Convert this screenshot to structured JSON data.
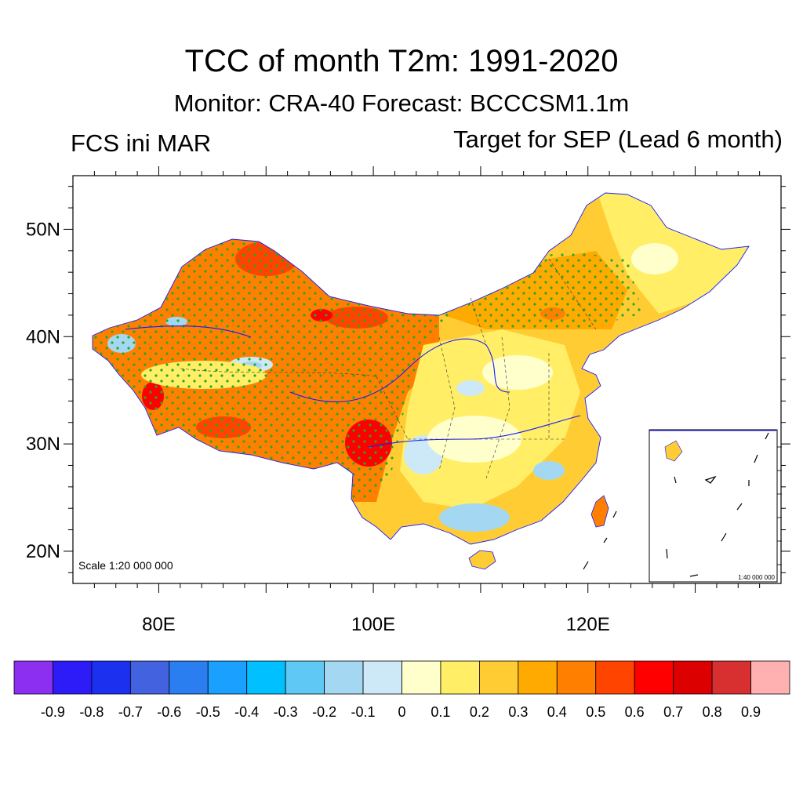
{
  "header": {
    "title": "TCC of month T2m: 1991-2020",
    "subtitle": "Monitor: CRA-40   Forecast: BCCCSM1.1m",
    "left_subtitle": "FCS ini MAR",
    "right_subtitle": "Target for SEP (Lead 6 month)"
  },
  "map": {
    "scale_label": "Scale 1:20 000 000",
    "inset_scale_label": "1:40 000 000",
    "lat_ticks": [
      "50N",
      "40N",
      "30N",
      "20N"
    ],
    "lat_values": [
      50,
      40,
      30,
      20
    ],
    "lon_ticks": [
      "80E",
      "100E",
      "120E"
    ],
    "lon_values": [
      80,
      100,
      120
    ],
    "lon_range": [
      72,
      138
    ],
    "lat_range": [
      17,
      55
    ],
    "colors": {
      "ocean": "#ffffff",
      "river": "#1a1aff",
      "border": "#000000",
      "stipple": "#22aa22"
    }
  },
  "colorbar": {
    "labels": [
      "-0.9",
      "-0.8",
      "-0.7",
      "-0.6",
      "-0.5",
      "-0.4",
      "-0.3",
      "-0.2",
      "-0.1",
      "0",
      "0.1",
      "0.2",
      "0.3",
      "0.4",
      "0.5",
      "0.6",
      "0.7",
      "0.8",
      "0.9"
    ],
    "colors": [
      "#8d2ff0",
      "#2e1cf8",
      "#1c30f0",
      "#4262e0",
      "#2a7ef0",
      "#1aa0ff",
      "#00c0ff",
      "#60c8f4",
      "#a4d8f2",
      "#cde9f7",
      "#ffffcc",
      "#ffee66",
      "#ffcc33",
      "#ffaa00",
      "#ff8000",
      "#ff4400",
      "#ff0000",
      "#dd0000",
      "#d83030",
      "#ffb0b0"
    ]
  }
}
